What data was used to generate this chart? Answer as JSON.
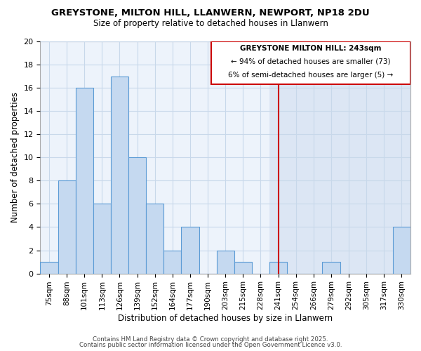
{
  "title_line1": "GREYSTONE, MILTON HILL, LLANWERN, NEWPORT, NP18 2DU",
  "title_line2": "Size of property relative to detached houses in Llanwern",
  "xlabel": "Distribution of detached houses by size in Llanwern",
  "ylabel": "Number of detached properties",
  "categories": [
    "75sqm",
    "88sqm",
    "101sqm",
    "113sqm",
    "126sqm",
    "139sqm",
    "152sqm",
    "164sqm",
    "177sqm",
    "190sqm",
    "203sqm",
    "215sqm",
    "228sqm",
    "241sqm",
    "254sqm",
    "266sqm",
    "279sqm",
    "292sqm",
    "305sqm",
    "317sqm",
    "330sqm"
  ],
  "values": [
    1,
    8,
    16,
    6,
    17,
    10,
    6,
    2,
    4,
    0,
    2,
    1,
    0,
    1,
    0,
    0,
    1,
    0,
    0,
    0,
    4
  ],
  "bar_color": "#c5d9f0",
  "bar_edge_color": "#5b9bd5",
  "highlight_bg_color": "#dce6f4",
  "normal_bg_color": "#edf3fb",
  "marker_idx": 13,
  "annotation_title": "GREYSTONE MILTON HILL: 243sqm",
  "annotation_line1": "← 94% of detached houses are smaller (73)",
  "annotation_line2": "6% of semi-detached houses are larger (5) →",
  "ylim": [
    0,
    20
  ],
  "yticks": [
    0,
    2,
    4,
    6,
    8,
    10,
    12,
    14,
    16,
    18,
    20
  ],
  "footer_line1": "Contains HM Land Registry data © Crown copyright and database right 2025.",
  "footer_line2": "Contains public sector information licensed under the Open Government Licence v3.0.",
  "background_color": "#ffffff",
  "grid_color": "#c8d8ea",
  "annotation_box_color": "#cc0000",
  "marker_line_color": "#cc0000"
}
